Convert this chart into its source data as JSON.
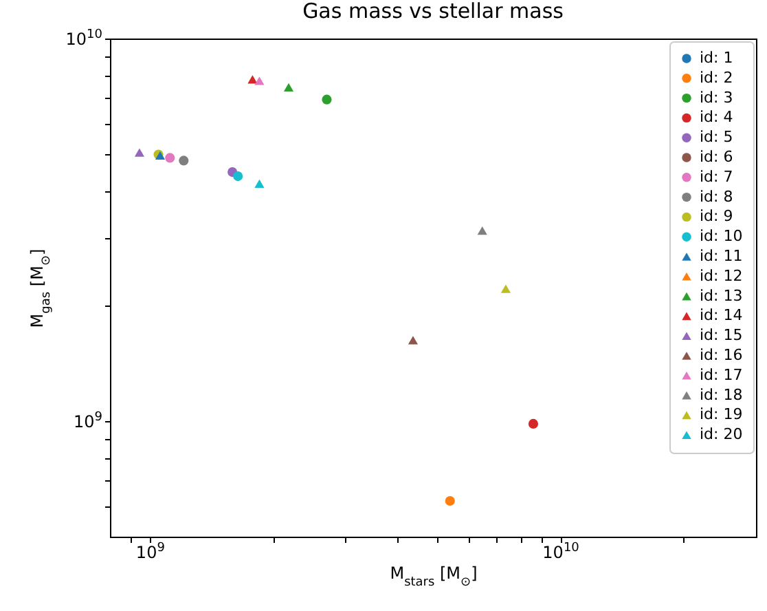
{
  "chart_data": {
    "type": "scatter",
    "title": "Gas mass vs stellar mass",
    "xlabel": "M$_{stars}$ [M$_{⊙}$]",
    "ylabel": "M$_{gas}$ [M$_{⊙}$]",
    "log": "xy",
    "grid": false,
    "legend": "top right",
    "xlim": [
      800000000,
      30000000000
    ],
    "ylim": [
      500000000,
      10000000000
    ],
    "xticks": [
      {
        "value": 900000000,
        "label": null
      },
      {
        "value": 1000000000,
        "label": "10$^{9}$"
      },
      {
        "value": 2000000000,
        "label": null
      },
      {
        "value": 3000000000,
        "label": null
      },
      {
        "value": 4000000000,
        "label": null
      },
      {
        "value": 5000000000,
        "label": null
      },
      {
        "value": 6000000000,
        "label": null
      },
      {
        "value": 7000000000,
        "label": null
      },
      {
        "value": 8000000000,
        "label": null
      },
      {
        "value": 9000000000,
        "label": null
      },
      {
        "value": 10000000000,
        "label": "10$^{10}$"
      },
      {
        "value": 20000000000,
        "label": null
      }
    ],
    "yticks": [
      {
        "value": 600000000,
        "label": null
      },
      {
        "value": 700000000,
        "label": null
      },
      {
        "value": 800000000,
        "label": null
      },
      {
        "value": 900000000,
        "label": null
      },
      {
        "value": 1000000000,
        "label": "10$^{9}$"
      },
      {
        "value": 2000000000,
        "label": null
      },
      {
        "value": 3000000000,
        "label": null
      },
      {
        "value": 4000000000,
        "label": null
      },
      {
        "value": 5000000000,
        "label": null
      },
      {
        "value": 6000000000,
        "label": null
      },
      {
        "value": 7000000000,
        "label": null
      },
      {
        "value": 8000000000,
        "label": null
      },
      {
        "value": 9000000000,
        "label": null
      },
      {
        "value": 10000000000,
        "label": "10$^{10}$"
      }
    ],
    "series": [
      {
        "name": "id: 1",
        "color": "#1f77b4",
        "marker": "circle",
        "x": [
          null
        ],
        "values": [
          null
        ]
      },
      {
        "name": "id: 2",
        "color": "#ff7f0e",
        "marker": "circle",
        "x": [
          5390000000
        ],
        "values": [
          620000000
        ]
      },
      {
        "name": "id: 3",
        "color": "#2ca02c",
        "marker": "circle",
        "x": [
          2700000000
        ],
        "values": [
          6930000000
        ]
      },
      {
        "name": "id: 4",
        "color": "#d62728",
        "marker": "circle",
        "x": [
          8600000000
        ],
        "values": [
          986000000
        ]
      },
      {
        "name": "id: 5",
        "color": "#9467bd",
        "marker": "circle",
        "x": [
          1590000000
        ],
        "values": [
          4480000000
        ]
      },
      {
        "name": "id: 6",
        "color": "#8c564b",
        "marker": "circle",
        "x": [
          null
        ],
        "values": [
          null
        ]
      },
      {
        "name": "id: 7",
        "color": "#e377c2",
        "marker": "circle",
        "x": [
          1120000000
        ],
        "values": [
          4880000000
        ]
      },
      {
        "name": "id: 8",
        "color": "#7f7f7f",
        "marker": "circle",
        "x": [
          1210000000
        ],
        "values": [
          4800000000
        ]
      },
      {
        "name": "id: 9",
        "color": "#bcbd22",
        "marker": "circle",
        "x": [
          1050000000
        ],
        "values": [
          4980000000
        ]
      },
      {
        "name": "id: 10",
        "color": "#17becf",
        "marker": "circle",
        "x": [
          1640000000
        ],
        "values": [
          4370000000
        ]
      },
      {
        "name": "id: 11",
        "color": "#1f77b4",
        "marker": "triangle",
        "x": [
          1060000000
        ],
        "values": [
          4950000000
        ]
      },
      {
        "name": "id: 12",
        "color": "#ff7f0e",
        "marker": "triangle",
        "x": [
          null
        ],
        "values": [
          null
        ]
      },
      {
        "name": "id: 13",
        "color": "#2ca02c",
        "marker": "triangle",
        "x": [
          2180000000
        ],
        "values": [
          7460000000
        ]
      },
      {
        "name": "id: 14",
        "color": "#d62728",
        "marker": "triangle",
        "x": [
          1780000000
        ],
        "values": [
          7820000000
        ]
      },
      {
        "name": "id: 15",
        "color": "#9467bd",
        "marker": "triangle",
        "x": [
          944000000
        ],
        "values": [
          5040000000
        ]
      },
      {
        "name": "id: 16",
        "color": "#8c564b",
        "marker": "triangle",
        "x": [
          4380000000
        ],
        "values": [
          1630000000
        ]
      },
      {
        "name": "id: 17",
        "color": "#e377c2",
        "marker": "triangle",
        "x": [
          1850000000
        ],
        "values": [
          7760000000
        ]
      },
      {
        "name": "id: 18",
        "color": "#7f7f7f",
        "marker": "triangle",
        "x": [
          6460000000
        ],
        "values": [
          3150000000
        ]
      },
      {
        "name": "id: 19",
        "color": "#bcbd22",
        "marker": "triangle",
        "x": [
          7370000000
        ],
        "values": [
          2220000000
        ]
      },
      {
        "name": "id: 20",
        "color": "#17becf",
        "marker": "triangle",
        "x": [
          1850000000
        ],
        "values": [
          4180000000
        ]
      }
    ]
  }
}
